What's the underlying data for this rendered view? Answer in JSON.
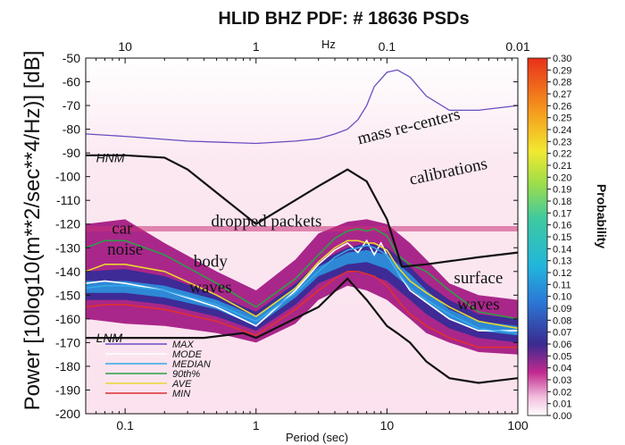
{
  "chart_data": {
    "type": "line",
    "title": "HLID BHZ  PDF: # 18636 PSDs",
    "ylabel": "Power [10log10(m**2/sec**4/Hz)] [dB]",
    "xlabel": "Period  (sec)",
    "top_axis_label": "Hz",
    "x_scale": "log",
    "xlim": [
      0.05,
      100
    ],
    "ylim": [
      -200,
      -50
    ],
    "x_ticks": [
      0.1,
      1,
      10,
      100
    ],
    "x_tick_labels": [
      "0.1",
      "1",
      "10",
      "100"
    ],
    "top_ticks": [
      0.1,
      1,
      10,
      100
    ],
    "top_tick_labels": [
      "10",
      "1",
      "0.1",
      "0.01"
    ],
    "y_ticks": [
      -50,
      -60,
      -70,
      -80,
      -90,
      -100,
      -110,
      -120,
      -130,
      -140,
      -150,
      -160,
      -170,
      -180,
      -190,
      -200
    ],
    "y_tick_labels": [
      "-50",
      "-60",
      "-70",
      "-80",
      "-90",
      "-100",
      "-110",
      "-120",
      "-130",
      "-140",
      "-150",
      "-160",
      "-170",
      "-180",
      "-190",
      "-200"
    ],
    "colorbar": {
      "title": "Probability",
      "range": [
        0.0,
        0.3
      ],
      "tick_labels": [
        "0.30",
        "0.29",
        "0.28",
        "0.27",
        "0.26",
        "0.25",
        "0.24",
        "0.23",
        "0.22",
        "0.21",
        "0.20",
        "0.19",
        "0.18",
        "0.17",
        "0.16",
        "0.15",
        "0.14",
        "0.13",
        "0.12",
        "0.11",
        "0.10",
        "0.09",
        "0.08",
        "0.07",
        "0.06",
        "0.05",
        "0.04",
        "0.03",
        "0.02",
        "0.01",
        "0.00"
      ]
    },
    "series": [
      {
        "name": "MAX",
        "color": "#6a4cc0",
        "x": [
          0.05,
          0.1,
          0.3,
          1,
          2,
          3,
          4,
          5,
          6,
          7,
          8,
          10,
          12,
          15,
          20,
          30,
          50,
          100
        ],
        "y": [
          -82,
          -83,
          -85,
          -86,
          -85,
          -84,
          -82,
          -80,
          -76,
          -70,
          -62,
          -56,
          -55,
          -58,
          -66,
          -72,
          -72,
          -70
        ]
      },
      {
        "name": "MODE",
        "color": "#ffffff",
        "x": [
          0.05,
          0.07,
          0.1,
          0.2,
          0.5,
          1,
          2,
          3,
          4,
          5,
          6,
          7,
          8,
          9,
          10,
          12,
          15,
          20,
          30,
          50,
          100
        ],
        "y": [
          -145,
          -144,
          -145,
          -148,
          -155,
          -163,
          -148,
          -137,
          -131,
          -128,
          -132,
          -127,
          -133,
          -128,
          -133,
          -140,
          -148,
          -153,
          -160,
          -165,
          -165
        ]
      },
      {
        "name": "MEDIAN",
        "color": "#38a8e8",
        "x": [
          0.05,
          0.07,
          0.1,
          0.2,
          0.5,
          1,
          2,
          3,
          4,
          5,
          6,
          7,
          8,
          10,
          12,
          15,
          20,
          30,
          50,
          100
        ],
        "y": [
          -147,
          -146,
          -146,
          -148,
          -154,
          -161,
          -149,
          -140,
          -134,
          -131,
          -130,
          -129,
          -130,
          -133,
          -140,
          -147,
          -152,
          -158,
          -164,
          -166
        ]
      },
      {
        "name": "90th%",
        "color": "#2ca048",
        "x": [
          0.05,
          0.07,
          0.1,
          0.2,
          0.5,
          1,
          2,
          3,
          4,
          5,
          6,
          7,
          8,
          10,
          12,
          15,
          20,
          30,
          50,
          100
        ],
        "y": [
          -130,
          -127,
          -127,
          -133,
          -145,
          -155,
          -143,
          -133,
          -126,
          -123,
          -122,
          -123,
          -122,
          -125,
          -133,
          -137,
          -140,
          -148,
          -157,
          -160
        ]
      },
      {
        "name": "AVE",
        "color": "#e8d830",
        "x": [
          0.05,
          0.07,
          0.1,
          0.2,
          0.5,
          1,
          2,
          3,
          4,
          5,
          6,
          7,
          8,
          10,
          12,
          15,
          20,
          30,
          50,
          100
        ],
        "y": [
          -140,
          -137,
          -137,
          -140,
          -150,
          -159,
          -147,
          -136,
          -130,
          -127,
          -127,
          -128,
          -128,
          -131,
          -138,
          -144,
          -149,
          -155,
          -161,
          -164
        ]
      },
      {
        "name": "MIN",
        "color": "#e03030",
        "x": [
          0.05,
          0.07,
          0.1,
          0.2,
          0.5,
          1,
          2,
          3,
          4,
          5,
          6,
          7,
          8,
          10,
          12,
          15,
          20,
          30,
          50,
          100
        ],
        "y": [
          -155,
          -154,
          -154,
          -156,
          -161,
          -167,
          -156,
          -148,
          -143,
          -140,
          -140,
          -141,
          -142,
          -146,
          -152,
          -158,
          -163,
          -168,
          -172,
          -172
        ]
      }
    ],
    "reference_models": [
      {
        "name": "HNM",
        "color": "#111111",
        "x": [
          0.05,
          0.1,
          0.2,
          0.3,
          1,
          3,
          5,
          7,
          10,
          13,
          20,
          50,
          100
        ],
        "y": [
          -91,
          -91,
          -92,
          -97,
          -120,
          -104,
          -97,
          -102,
          -118,
          -138,
          -137,
          -134,
          -132
        ]
      },
      {
        "name": "LNM",
        "color": "#111111",
        "x": [
          0.05,
          0.1,
          0.17,
          0.4,
          0.8,
          1,
          3,
          5,
          7,
          10,
          12,
          15,
          20,
          30,
          50,
          100
        ],
        "y": [
          -168,
          -168,
          -168,
          -168,
          -166,
          -168,
          -155,
          -143,
          -152,
          -163,
          -166,
          -170,
          -178,
          -185,
          -187,
          -185
        ]
      }
    ],
    "density_bands": [
      {
        "x": [
          0.05,
          0.1,
          0.2,
          0.5,
          1,
          2,
          3,
          5,
          7,
          10,
          15,
          20,
          30,
          50,
          100
        ],
        "upper": [
          -120,
          -118,
          -128,
          -140,
          -148,
          -135,
          -124,
          -119,
          -118,
          -120,
          -128,
          -135,
          -145,
          -150,
          -152
        ],
        "lower": [
          -160,
          -162,
          -163,
          -166,
          -170,
          -162,
          -152,
          -146,
          -148,
          -152,
          -160,
          -166,
          -170,
          -174,
          -175
        ],
        "color": "#a0127e",
        "opacity": 0.9
      },
      {
        "x": [
          0.05,
          0.1,
          0.2,
          0.5,
          1,
          2,
          3,
          5,
          7,
          10,
          15,
          20,
          30,
          50,
          100
        ],
        "upper": [
          -140,
          -139,
          -142,
          -150,
          -157,
          -145,
          -136,
          -130,
          -128,
          -130,
          -138,
          -145,
          -152,
          -158,
          -160
        ],
        "lower": [
          -152,
          -152,
          -154,
          -159,
          -165,
          -154,
          -145,
          -140,
          -141,
          -144,
          -152,
          -158,
          -164,
          -168,
          -170
        ],
        "color": "#2b2d98",
        "opacity": 0.85
      },
      {
        "x": [
          0.05,
          0.1,
          0.2,
          0.5,
          1,
          2,
          3,
          5,
          7,
          10,
          15,
          20,
          30,
          50,
          100
        ],
        "upper": [
          -144,
          -144,
          -146,
          -152,
          -159,
          -147,
          -138,
          -132,
          -131,
          -133,
          -141,
          -148,
          -156,
          -161,
          -163
        ],
        "lower": [
          -149,
          -149,
          -151,
          -156,
          -163,
          -151,
          -142,
          -137,
          -136,
          -139,
          -147,
          -153,
          -160,
          -165,
          -167
        ],
        "color": "#2aa0e6",
        "opacity": 0.8
      }
    ],
    "annotations": [
      {
        "text": "mass re-centers",
        "x": 15,
        "y": -81,
        "rotate": -14
      },
      {
        "text": "calibrations",
        "x": 30,
        "y": -100,
        "rotate": -12
      },
      {
        "text": "dropped packets",
        "x": 1.2,
        "y": -121,
        "rotate": 0
      },
      {
        "text": "car",
        "x": 0.095,
        "y": -124,
        "rotate": 0
      },
      {
        "text": "noise",
        "x": 0.1,
        "y": -133,
        "rotate": 0
      },
      {
        "text": "body",
        "x": 0.45,
        "y": -138,
        "rotate": 0
      },
      {
        "text": "waves",
        "x": 0.45,
        "y": -149,
        "rotate": 0
      },
      {
        "text": "surface",
        "x": 50,
        "y": -145,
        "rotate": 0
      },
      {
        "text": "waves",
        "x": 50,
        "y": -156,
        "rotate": 0
      }
    ],
    "model_labels": [
      {
        "text": "HNM",
        "x": 0.06,
        "y": -92
      },
      {
        "text": "LNM",
        "x": 0.06,
        "y": -168
      }
    ],
    "legend": {
      "placement": "bottom-left",
      "entries": [
        {
          "label": "MAX",
          "color": "#6a4cc0"
        },
        {
          "label": "MODE",
          "color": "#ffffff"
        },
        {
          "label": "MEDIAN",
          "color": "#38a8e8"
        },
        {
          "label": "90th%",
          "color": "#2ca048"
        },
        {
          "label": "AVE",
          "color": "#e8d830"
        },
        {
          "label": "MIN",
          "color": "#e03030"
        }
      ]
    },
    "grid": false
  }
}
